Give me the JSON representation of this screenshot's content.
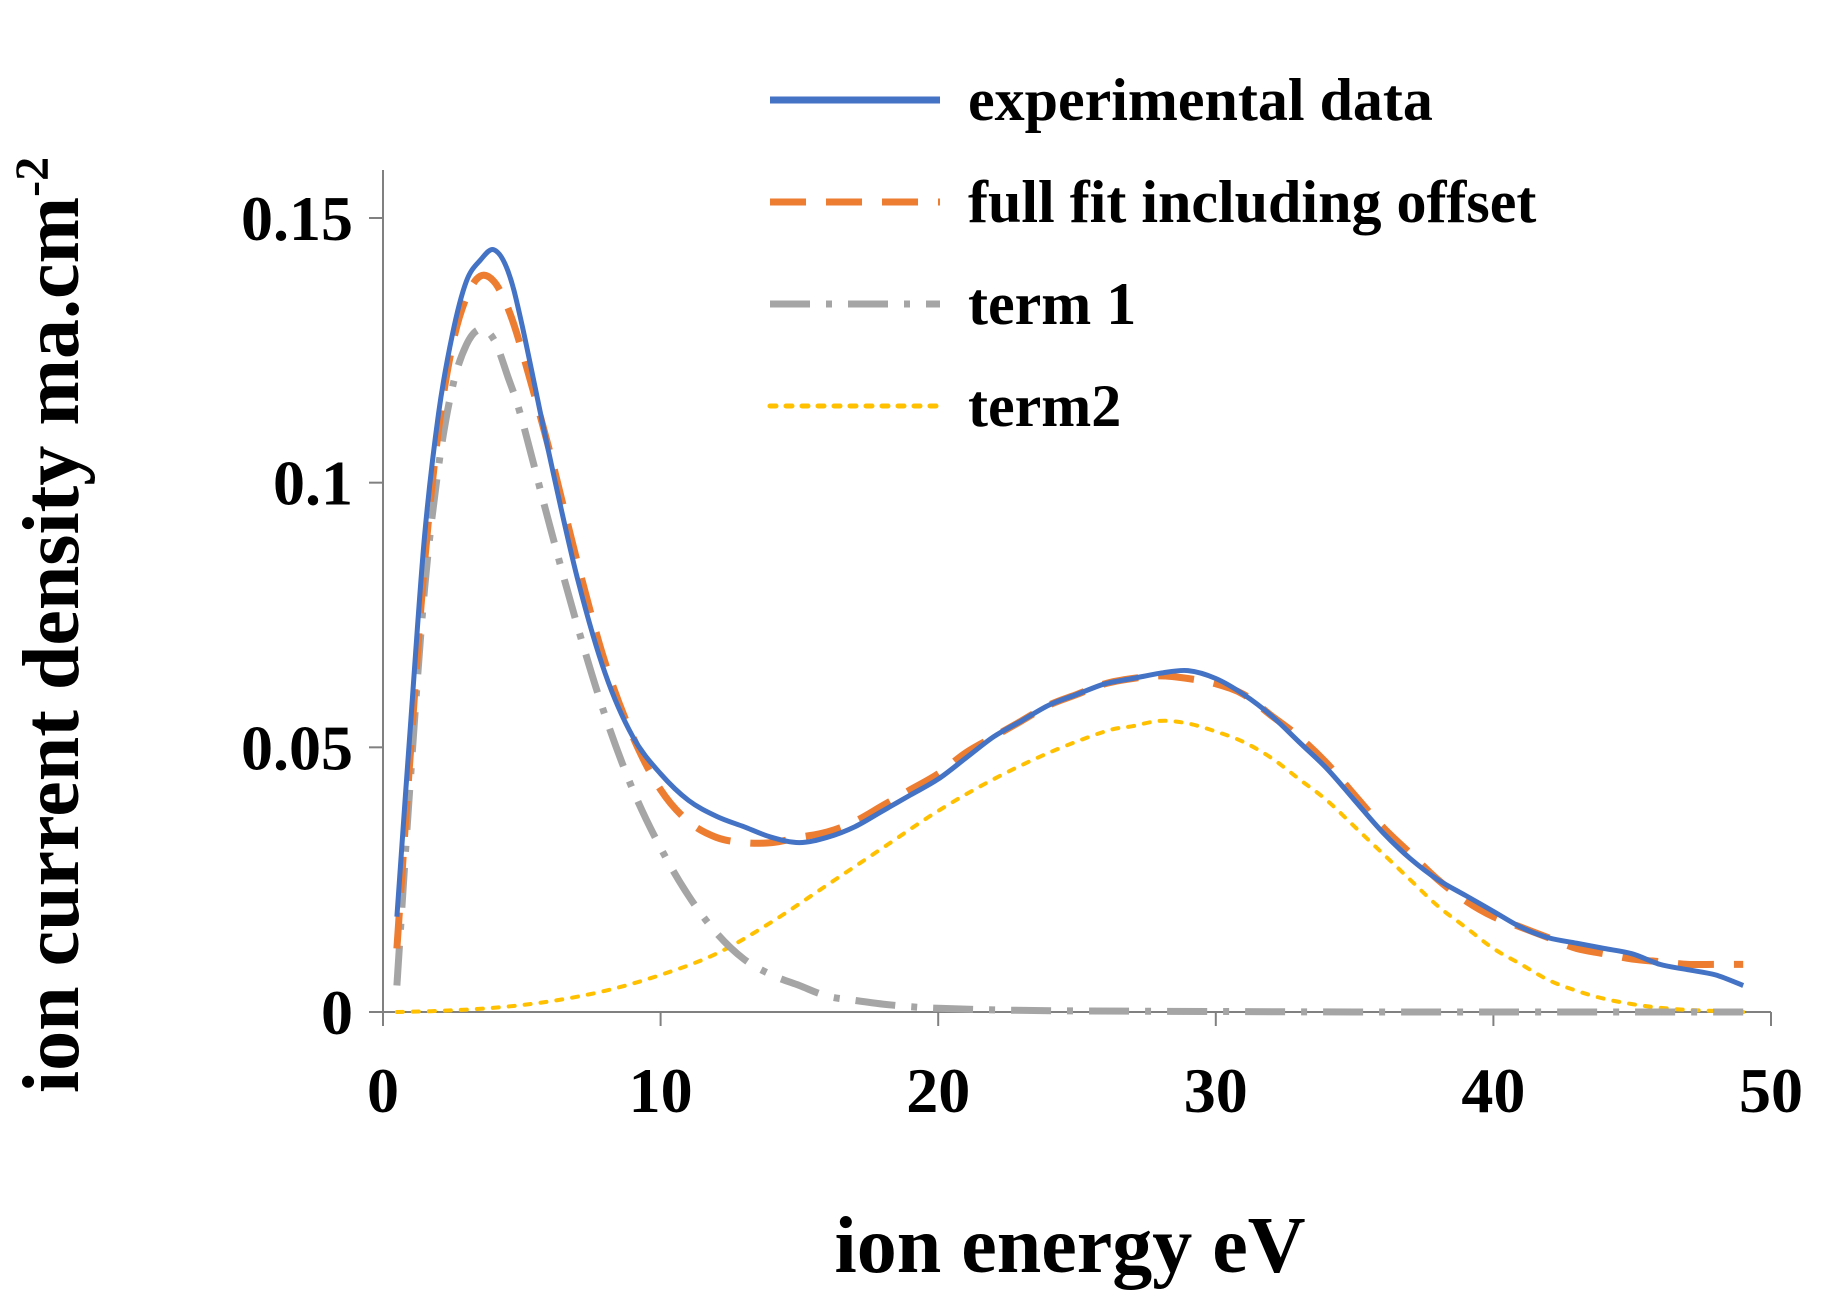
{
  "chart_data": {
    "type": "line",
    "title": "",
    "xlabel": "ion energy eV",
    "ylabel": "ion current density ma.cm",
    "ylabel_superscript": "-2",
    "xlim": [
      0,
      50
    ],
    "ylim": [
      0,
      0.16
    ],
    "x_ticks": [
      0,
      10,
      20,
      30,
      40,
      50
    ],
    "x_tick_labels": [
      "0",
      "10",
      "20",
      "30",
      "40",
      "50"
    ],
    "y_ticks": [
      0,
      0.05,
      0.1,
      0.15
    ],
    "y_tick_labels": [
      "0",
      "0.05",
      "0.1",
      "0.15"
    ],
    "grid": false,
    "legend_position": "top-right",
    "series": [
      {
        "name": "experimental data",
        "style": "solid",
        "color": "#4472C4",
        "x": [
          0.5,
          1,
          1.5,
          2,
          2.5,
          3,
          3.5,
          4,
          4.5,
          5,
          6,
          7,
          8,
          9,
          10,
          11,
          12,
          13,
          14,
          15,
          16,
          17,
          18,
          19,
          20,
          21,
          22,
          23,
          24,
          25,
          26,
          27,
          28,
          29,
          30,
          31,
          32,
          33,
          34,
          35,
          36,
          37,
          38,
          39,
          40,
          41,
          42,
          43,
          44,
          45,
          46,
          47,
          48,
          49
        ],
        "y": [
          0.018,
          0.055,
          0.09,
          0.113,
          0.128,
          0.138,
          0.142,
          0.144,
          0.14,
          0.13,
          0.105,
          0.082,
          0.064,
          0.052,
          0.045,
          0.04,
          0.037,
          0.035,
          0.033,
          0.032,
          0.033,
          0.035,
          0.038,
          0.041,
          0.044,
          0.048,
          0.052,
          0.055,
          0.058,
          0.06,
          0.062,
          0.063,
          0.064,
          0.0645,
          0.063,
          0.06,
          0.056,
          0.051,
          0.046,
          0.04,
          0.034,
          0.029,
          0.025,
          0.022,
          0.019,
          0.016,
          0.014,
          0.013,
          0.012,
          0.011,
          0.009,
          0.008,
          0.007,
          0.005
        ]
      },
      {
        "name": "full fit including offset",
        "style": "dashed",
        "color": "#ED7D31",
        "x": [
          0.5,
          1,
          1.5,
          2,
          2.5,
          3,
          3.5,
          4,
          4.5,
          5,
          6,
          7,
          8,
          9,
          10,
          11,
          12,
          13,
          14,
          15,
          16,
          17,
          18,
          19,
          20,
          21,
          22,
          23,
          24,
          25,
          26,
          27,
          28,
          29,
          30,
          31,
          32,
          33,
          34,
          35,
          36,
          37,
          38,
          39,
          40,
          41,
          42,
          43,
          44,
          45,
          46,
          47,
          48,
          49
        ],
        "y": [
          0.012,
          0.05,
          0.085,
          0.11,
          0.126,
          0.135,
          0.139,
          0.138,
          0.133,
          0.125,
          0.106,
          0.085,
          0.066,
          0.052,
          0.042,
          0.036,
          0.033,
          0.032,
          0.032,
          0.033,
          0.034,
          0.036,
          0.039,
          0.042,
          0.045,
          0.049,
          0.052,
          0.055,
          0.058,
          0.06,
          0.062,
          0.063,
          0.0635,
          0.063,
          0.062,
          0.06,
          0.056,
          0.052,
          0.047,
          0.041,
          0.035,
          0.03,
          0.025,
          0.021,
          0.018,
          0.016,
          0.014,
          0.012,
          0.011,
          0.01,
          0.0095,
          0.009,
          0.009,
          0.009
        ]
      },
      {
        "name": "term 1",
        "style": "dashdot",
        "color": "#A5A5A5",
        "x": [
          0.5,
          1,
          1.5,
          2,
          2.5,
          3,
          3.5,
          4,
          4.5,
          5,
          6,
          7,
          8,
          9,
          10,
          11,
          12,
          13,
          14,
          15,
          16,
          17,
          18,
          19,
          20,
          22,
          25,
          30,
          35,
          40,
          45,
          49
        ],
        "y": [
          0.005,
          0.045,
          0.08,
          0.103,
          0.118,
          0.126,
          0.129,
          0.127,
          0.12,
          0.112,
          0.092,
          0.073,
          0.056,
          0.042,
          0.031,
          0.022,
          0.015,
          0.01,
          0.007,
          0.005,
          0.003,
          0.0022,
          0.0015,
          0.001,
          0.0007,
          0.0004,
          0.0002,
          0.0001,
          0.0,
          0.0,
          0.0,
          0.0
        ]
      },
      {
        "name": "term2",
        "style": "dotted",
        "color": "#FFC000",
        "x": [
          0.5,
          2,
          4,
          6,
          8,
          10,
          12,
          14,
          16,
          18,
          20,
          22,
          24,
          26,
          27,
          28,
          29,
          30,
          31,
          32,
          33,
          34,
          35,
          36,
          37,
          38,
          39,
          40,
          41,
          42,
          43,
          44,
          45,
          46,
          47,
          48,
          49
        ],
        "y": [
          0.0,
          0.0002,
          0.0008,
          0.002,
          0.004,
          0.007,
          0.011,
          0.017,
          0.024,
          0.031,
          0.038,
          0.044,
          0.049,
          0.053,
          0.054,
          0.055,
          0.0545,
          0.053,
          0.051,
          0.048,
          0.044,
          0.04,
          0.035,
          0.03,
          0.025,
          0.02,
          0.016,
          0.012,
          0.009,
          0.006,
          0.004,
          0.0025,
          0.0015,
          0.0008,
          0.0004,
          0.0002,
          0.0
        ]
      }
    ]
  }
}
